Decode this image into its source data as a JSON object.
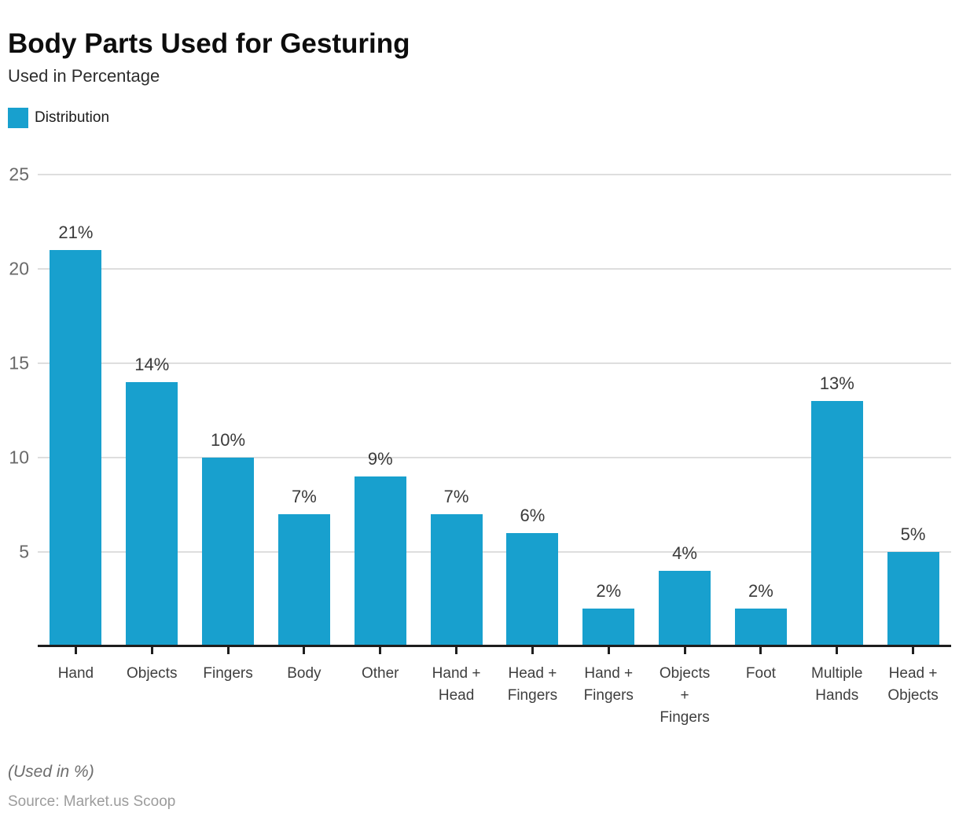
{
  "header": {
    "title": "Body Parts Used for Gesturing",
    "subtitle": "Used in Percentage",
    "legend": {
      "label": "Distribution",
      "swatch_color": "#18A0CE"
    }
  },
  "chart_data": {
    "type": "bar",
    "title": "Body Parts Used for Gesturing",
    "subtitle": "Used in Percentage",
    "legend": [
      "Distribution"
    ],
    "legend_position": "top-left",
    "grid": true,
    "categories": [
      "Hand",
      "Objects",
      "Fingers",
      "Body",
      "Other",
      "Hand + Head",
      "Head + Fingers",
      "Hand + Fingers",
      "Objects + Fingers",
      "Foot",
      "Multiple Hands",
      "Head + Objects"
    ],
    "category_label_lines": [
      [
        "Hand"
      ],
      [
        "Objects"
      ],
      [
        "Fingers"
      ],
      [
        "Body"
      ],
      [
        "Other"
      ],
      [
        "Hand +",
        "Head"
      ],
      [
        "Head +",
        "Fingers"
      ],
      [
        "Hand +",
        "Fingers"
      ],
      [
        "Objects",
        "+",
        "Fingers"
      ],
      [
        "Foot"
      ],
      [
        "Multiple",
        "Hands"
      ],
      [
        "Head +",
        "Objects"
      ]
    ],
    "values": [
      21,
      14,
      10,
      7,
      9,
      7,
      6,
      2,
      4,
      2,
      13,
      5
    ],
    "value_labels": [
      "21%",
      "14%",
      "10%",
      "7%",
      "9%",
      "7%",
      "6%",
      "2%",
      "4%",
      "2%",
      "13%",
      "5%"
    ],
    "xlabel": "",
    "ylabel": "",
    "ylim": [
      0,
      25
    ],
    "yticks": [
      5,
      10,
      15,
      20,
      25
    ],
    "colors": {
      "bar": "#18A0CE",
      "grid": "#DEDEDE",
      "axis": "#1E1E1E",
      "ytick_label": "#696969",
      "value_label": "#3A3A3A",
      "xtick_label": "#3F3F3F"
    }
  },
  "footer": {
    "note": "(Used in %)",
    "source": "Source: Market.us Scoop"
  }
}
